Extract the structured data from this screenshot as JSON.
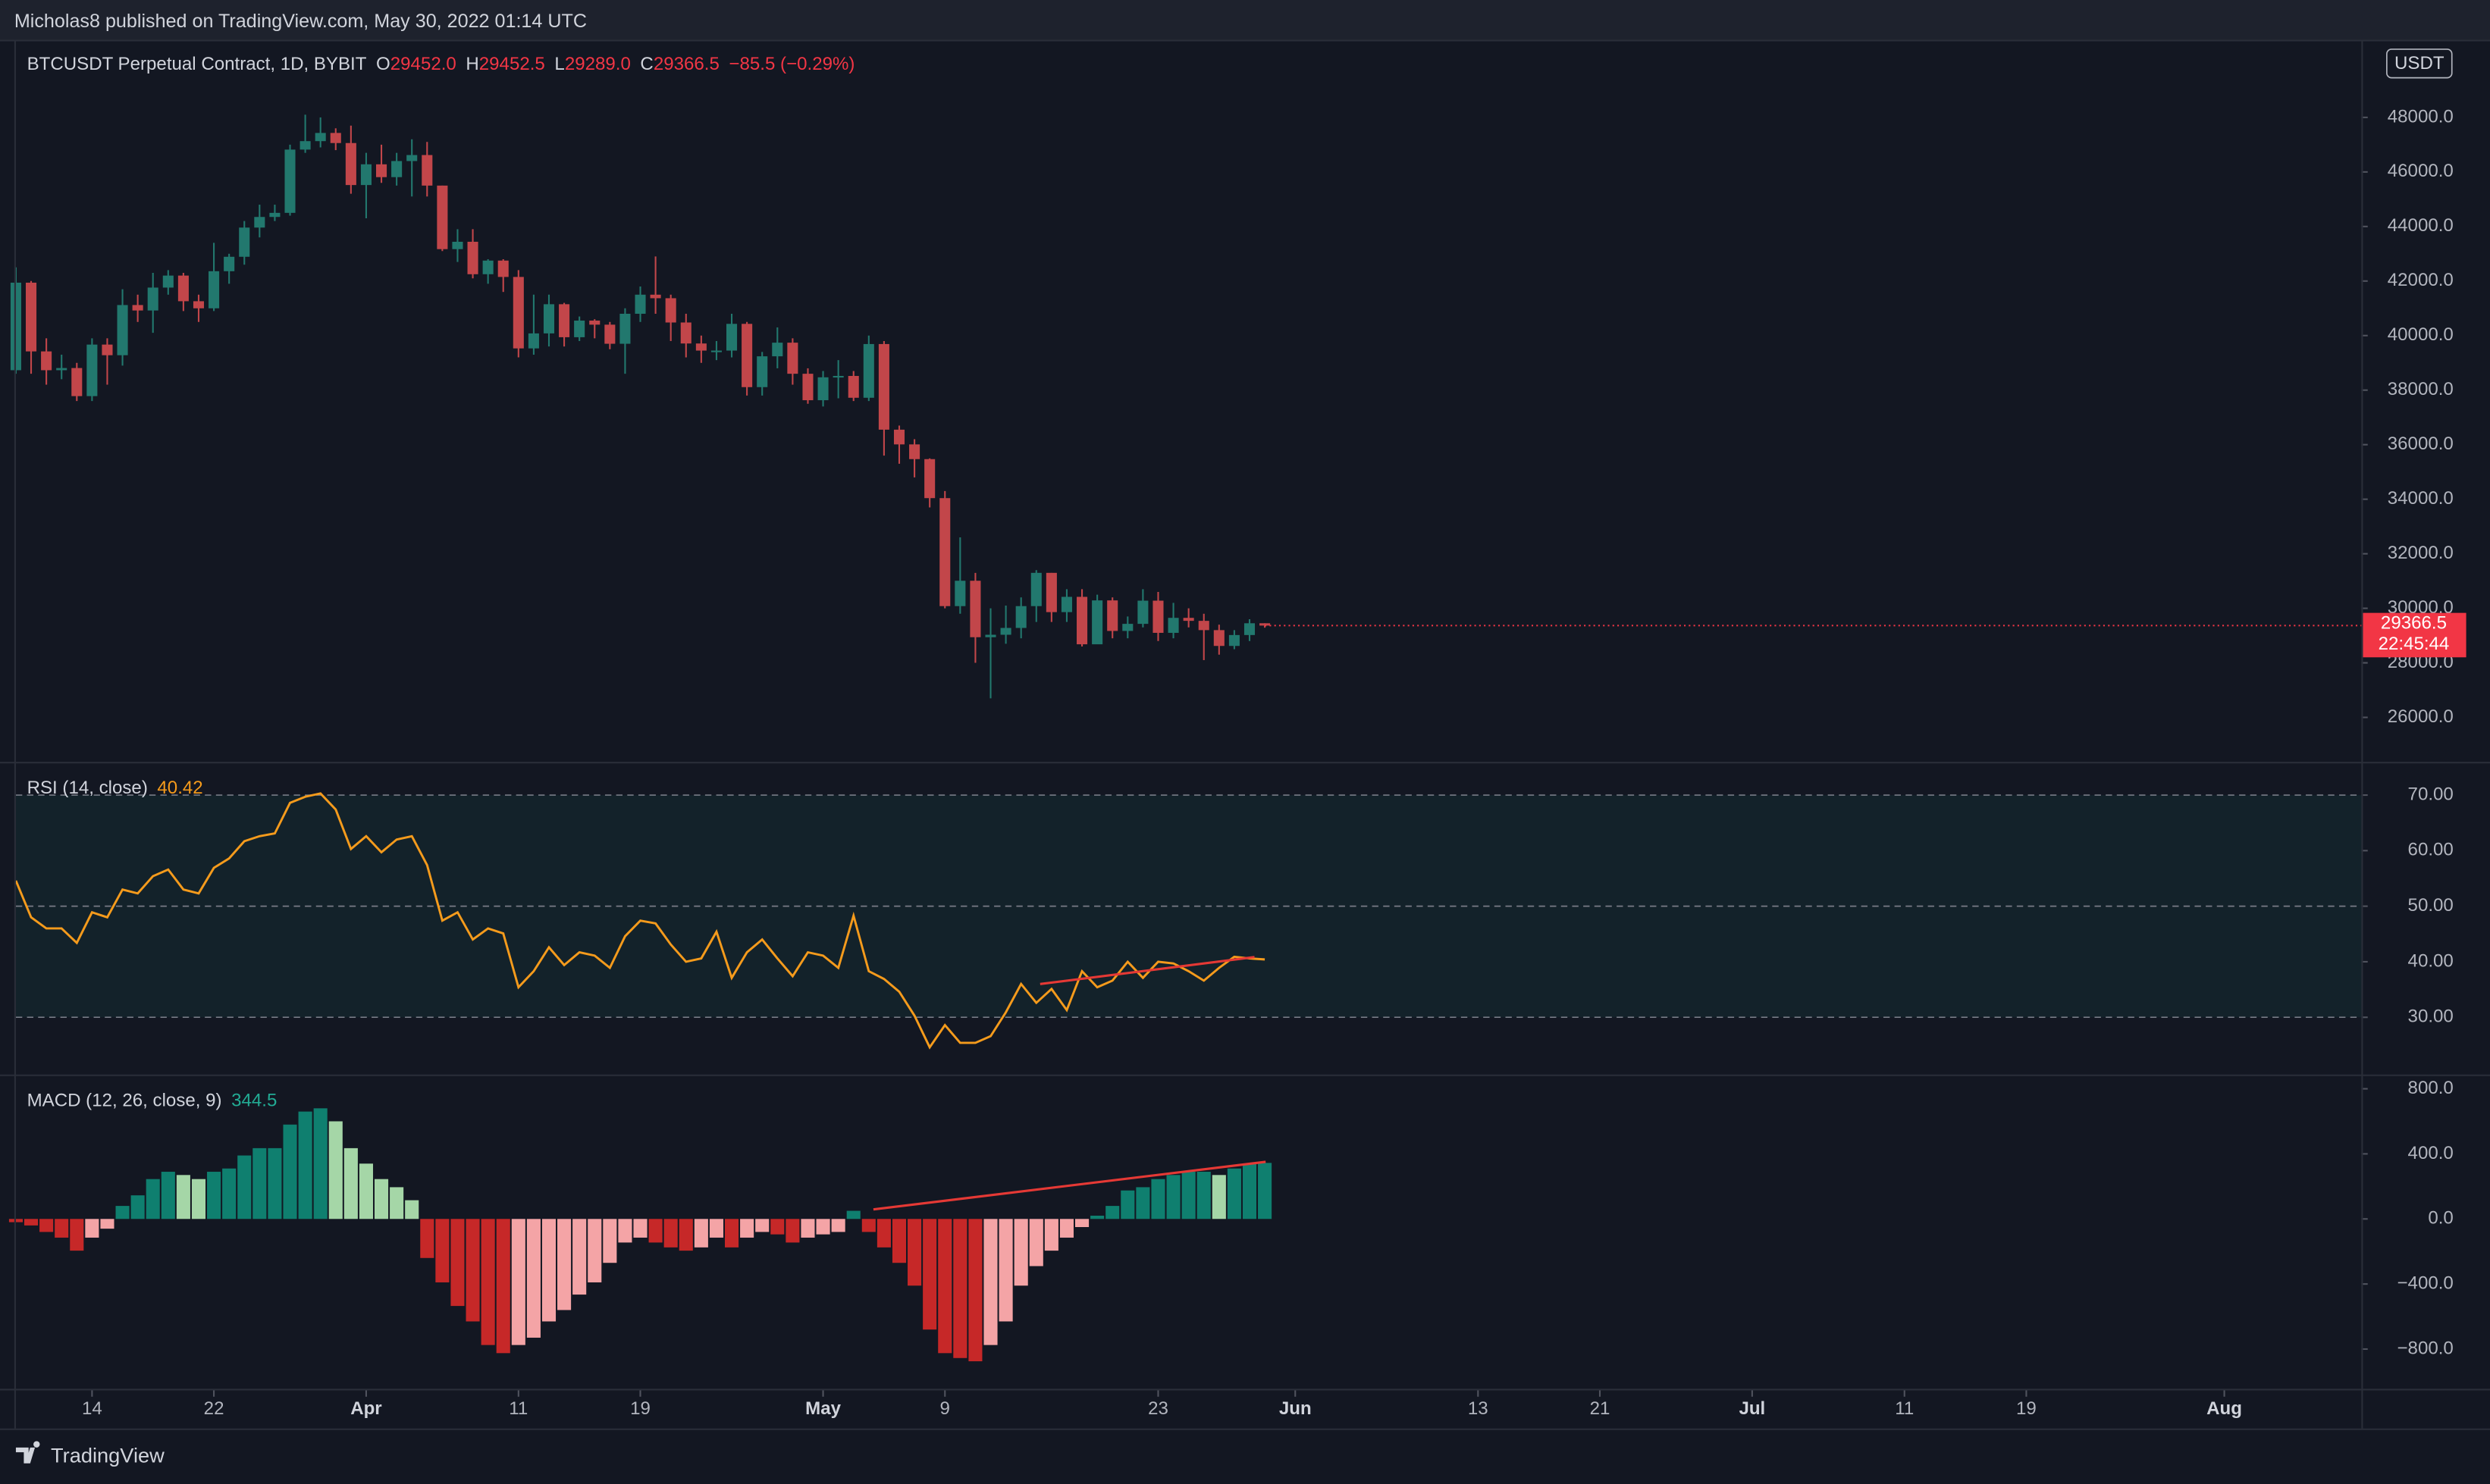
{
  "header": "Micholas8 published on TradingView.com, May 30, 2022 01:14 UTC",
  "footer": "TradingView",
  "currency_button": "USDT",
  "countdown": "22:45:44",
  "legend": {
    "symbol": "BTCUSDT Perpetual Contract, 1D, BYBIT",
    "items": [
      {
        "key": "O",
        "value": "29452.0"
      },
      {
        "key": "H",
        "value": "29452.5"
      },
      {
        "key": "L",
        "value": "29289.0"
      },
      {
        "key": "C",
        "value": "29366.5"
      }
    ],
    "change": "−85.5 (−0.29%)"
  },
  "chart_data": {
    "type": "candlestick",
    "up_color": "#22786e",
    "down_color": "#c2464a",
    "last_color": "#f23645",
    "xlim": [
      "2022-03-09",
      "2022-08-10"
    ],
    "xticks": [
      {
        "value": "2022-03-14",
        "label": "14"
      },
      {
        "value": "2022-03-22",
        "label": "22"
      },
      {
        "value": "2022-04-01",
        "label": "Apr"
      },
      {
        "value": "2022-04-11",
        "label": "11"
      },
      {
        "value": "2022-04-19",
        "label": "19"
      },
      {
        "value": "2022-05-01",
        "label": "May"
      },
      {
        "value": "2022-05-09",
        "label": "9"
      },
      {
        "value": "2022-05-23",
        "label": "23"
      },
      {
        "value": "2022-06-01",
        "label": "Jun"
      },
      {
        "value": "2022-06-13",
        "label": "13"
      },
      {
        "value": "2022-06-21",
        "label": "21"
      },
      {
        "value": "2022-07-01",
        "label": "Jul"
      },
      {
        "value": "2022-07-11",
        "label": "11"
      },
      {
        "value": "2022-07-19",
        "label": "19"
      },
      {
        "value": "2022-08-01",
        "label": "Aug"
      }
    ],
    "x": [
      "2022-03-09",
      "2022-03-10",
      "2022-03-11",
      "2022-03-12",
      "2022-03-13",
      "2022-03-14",
      "2022-03-15",
      "2022-03-16",
      "2022-03-17",
      "2022-03-18",
      "2022-03-19",
      "2022-03-20",
      "2022-03-21",
      "2022-03-22",
      "2022-03-23",
      "2022-03-24",
      "2022-03-25",
      "2022-03-26",
      "2022-03-27",
      "2022-03-28",
      "2022-03-29",
      "2022-03-30",
      "2022-03-31",
      "2022-04-01",
      "2022-04-02",
      "2022-04-03",
      "2022-04-04",
      "2022-04-05",
      "2022-04-06",
      "2022-04-07",
      "2022-04-08",
      "2022-04-09",
      "2022-04-10",
      "2022-04-11",
      "2022-04-12",
      "2022-04-13",
      "2022-04-14",
      "2022-04-15",
      "2022-04-16",
      "2022-04-17",
      "2022-04-18",
      "2022-04-19",
      "2022-04-20",
      "2022-04-21",
      "2022-04-22",
      "2022-04-23",
      "2022-04-24",
      "2022-04-25",
      "2022-04-26",
      "2022-04-27",
      "2022-04-28",
      "2022-04-29",
      "2022-04-30",
      "2022-05-01",
      "2022-05-02",
      "2022-05-03",
      "2022-05-04",
      "2022-05-05",
      "2022-05-06",
      "2022-05-07",
      "2022-05-08",
      "2022-05-09",
      "2022-05-10",
      "2022-05-11",
      "2022-05-12",
      "2022-05-13",
      "2022-05-14",
      "2022-05-15",
      "2022-05-16",
      "2022-05-17",
      "2022-05-18",
      "2022-05-19",
      "2022-05-20",
      "2022-05-21",
      "2022-05-22",
      "2022-05-23",
      "2022-05-24",
      "2022-05-25",
      "2022-05-26",
      "2022-05-27",
      "2022-05-28",
      "2022-05-29",
      "2022-05-30"
    ],
    "open": [
      38730,
      41940,
      39420,
      38730,
      38810,
      37780,
      39670,
      39280,
      41120,
      40920,
      41760,
      42200,
      41260,
      41000,
      42360,
      42890,
      43960,
      44350,
      44500,
      46820,
      47130,
      47430,
      47060,
      45520,
      46280,
      45810,
      46400,
      46620,
      45500,
      43170,
      43440,
      42250,
      42750,
      42150,
      39530,
      40080,
      41150,
      39940,
      40550,
      40400,
      39700,
      40800,
      41500,
      41370,
      40480,
      39710,
      39450,
      39450,
      40430,
      38110,
      39240,
      39740,
      38600,
      37630,
      38470,
      38520,
      37720,
      39690,
      36550,
      36010,
      35470,
      34040,
      30080,
      31010,
      28940,
      29030,
      29280,
      30080,
      31300,
      29860,
      30420,
      28680,
      30290,
      29170,
      29430,
      30280,
      29100,
      29650,
      29540,
      29200,
      28620,
      29020,
      29452
    ],
    "high": [
      42500,
      42000,
      39900,
      39300,
      39000,
      39900,
      39900,
      41700,
      41500,
      42300,
      42400,
      42300,
      41500,
      43400,
      43000,
      44200,
      44800,
      44800,
      47000,
      48100,
      48000,
      47600,
      47700,
      46700,
      47000,
      46700,
      47200,
      47100,
      45500,
      43900,
      43900,
      42800,
      42800,
      42400,
      41500,
      41500,
      41200,
      40700,
      40600,
      40500,
      41000,
      41800,
      42900,
      41500,
      40800,
      40000,
      39800,
      40800,
      40500,
      39400,
      40300,
      39900,
      38800,
      38700,
      39100,
      38700,
      40000,
      39800,
      36700,
      36200,
      35500,
      34300,
      32600,
      31300,
      30000,
      30100,
      30400,
      31400,
      31300,
      30700,
      30700,
      30500,
      30400,
      29700,
      30700,
      30600,
      30200,
      30000,
      29800,
      29400,
      29200,
      29600,
      29452.5
    ],
    "low": [
      38600,
      38600,
      38200,
      38400,
      37600,
      37600,
      38200,
      38900,
      40500,
      40100,
      41500,
      40900,
      40500,
      40900,
      41900,
      42600,
      43600,
      44200,
      44400,
      46700,
      46900,
      46800,
      45200,
      44300,
      45600,
      45500,
      45100,
      45100,
      43100,
      42700,
      42100,
      41900,
      41600,
      39200,
      39300,
      39600,
      39600,
      39800,
      39900,
      39500,
      38600,
      40500,
      40800,
      39800,
      39200,
      39000,
      39100,
      39200,
      37800,
      37800,
      38800,
      38200,
      37500,
      37400,
      37700,
      37600,
      37600,
      35600,
      35300,
      34800,
      33700,
      30000,
      29800,
      28000,
      26700,
      28700,
      28900,
      29500,
      29500,
      29500,
      28600,
      28700,
      28900,
      28900,
      29300,
      28800,
      28900,
      29300,
      28100,
      28300,
      28500,
      28800,
      29289
    ],
    "close": [
      41940,
      39420,
      38730,
      38810,
      37780,
      39670,
      39280,
      41120,
      40920,
      41760,
      42200,
      41260,
      41000,
      42360,
      42890,
      43960,
      44350,
      44500,
      46820,
      47130,
      47430,
      47060,
      45520,
      46280,
      45810,
      46400,
      46620,
      45500,
      43170,
      43440,
      42250,
      42750,
      42150,
      39530,
      40080,
      41150,
      39940,
      40550,
      40400,
      39700,
      40800,
      41500,
      41370,
      40480,
      39710,
      39450,
      39450,
      40430,
      38110,
      39240,
      39740,
      38600,
      37630,
      38470,
      38520,
      37720,
      39690,
      36550,
      36010,
      35470,
      34040,
      30080,
      31010,
      28940,
      29030,
      29280,
      30080,
      31300,
      29860,
      30420,
      28680,
      30290,
      29170,
      29430,
      30280,
      29100,
      29650,
      29540,
      29200,
      28620,
      29020,
      29452,
      29366.5
    ],
    "ylim": [
      24370,
      50850
    ],
    "yticks": [
      {
        "value": 26000,
        "label": "26000.0"
      },
      {
        "value": 28000,
        "label": "28000.0"
      },
      {
        "value": 30000,
        "label": "30000.0"
      },
      {
        "value": 32000,
        "label": "32000.0"
      },
      {
        "value": 34000,
        "label": "34000.0"
      },
      {
        "value": 36000,
        "label": "36000.0"
      },
      {
        "value": 38000,
        "label": "38000.0"
      },
      {
        "value": 40000,
        "label": "40000.0"
      },
      {
        "value": 42000,
        "label": "42000.0"
      },
      {
        "value": 44000,
        "label": "44000.0"
      },
      {
        "value": 46000,
        "label": "46000.0"
      },
      {
        "value": 48000,
        "label": "48000.0"
      }
    ],
    "panes": [
      {
        "type": "line",
        "name": "RSI (14, close)",
        "color": "#f59b1c",
        "band_color": "#13222a",
        "level_color": "#787b86",
        "values": [
          54.6,
          48,
          46,
          46,
          43.4,
          48.9,
          48,
          53,
          52.3,
          55.4,
          56.6,
          53,
          52.3,
          56.9,
          58.6,
          61.7,
          62.6,
          63.1,
          68.6,
          69.7,
          70.3,
          67.4,
          60.3,
          62.6,
          59.7,
          62,
          62.6,
          57.4,
          47.4,
          48.9,
          44,
          46,
          45.1,
          35.4,
          38.3,
          42.6,
          39.4,
          41.7,
          41.1,
          38.9,
          44.6,
          47.4,
          46.9,
          43.1,
          40,
          40.6,
          45.4,
          37.1,
          41.7,
          44,
          40.6,
          37.4,
          41.7,
          41.1,
          38.9,
          48.3,
          38.3,
          36.9,
          34.6,
          30.3,
          24.6,
          28.6,
          25.4,
          25.4,
          26.6,
          30.9,
          36,
          32.6,
          35.1,
          31.3,
          38.3,
          35.4,
          36.6,
          40,
          37.1,
          40,
          39.7,
          38.3,
          36.6,
          38.9,
          40.9,
          40.6,
          40.42
        ],
        "levels": [
          70,
          50,
          30
        ],
        "ylim": [
          19.7,
          75.7
        ],
        "yticks": [
          {
            "value": 30,
            "label": "30.00"
          },
          {
            "value": 40,
            "label": "40.00"
          },
          {
            "value": 50,
            "label": "50.00"
          },
          {
            "value": 60,
            "label": "60.00"
          },
          {
            "value": 70,
            "label": "70.00"
          }
        ]
      },
      {
        "type": "bar",
        "name": "MACD (12, 26, close, 9)",
        "colors": {
          "pos_up": "#0f7f6f",
          "pos_down": "#a5d6a7",
          "neg_down": "#c62828",
          "neg_up": "#f4a4a6"
        },
        "label_color": "#22ab94",
        "values": [
          -20,
          -40,
          -80,
          -115,
          -195,
          -115,
          -60,
          80,
          145,
          245,
          290,
          270,
          245,
          290,
          310,
          390,
          435,
          435,
          580,
          660,
          680,
          600,
          435,
          340,
          245,
          195,
          115,
          -240,
          -390,
          -535,
          -630,
          -775,
          -825,
          -775,
          -730,
          -630,
          -560,
          -465,
          -390,
          -270,
          -145,
          -115,
          -145,
          -175,
          -195,
          -175,
          -115,
          -175,
          -115,
          -80,
          -95,
          -145,
          -115,
          -95,
          -80,
          50,
          -80,
          -175,
          -270,
          -410,
          -680,
          -825,
          -855,
          -875,
          -775,
          -630,
          -410,
          -290,
          -195,
          -115,
          -50,
          20,
          80,
          175,
          195,
          245,
          270,
          290,
          290,
          270,
          310,
          340,
          344.5
        ],
        "ylim": [
          -1044,
          878
        ],
        "yticks": [
          {
            "value": -800,
            "label": "−800.0"
          },
          {
            "value": -400,
            "label": "−400.0"
          },
          {
            "value": 0,
            "label": "0.0"
          },
          {
            "value": 400,
            "label": "400.0"
          },
          {
            "value": 800,
            "label": "800.0"
          }
        ]
      }
    ]
  }
}
